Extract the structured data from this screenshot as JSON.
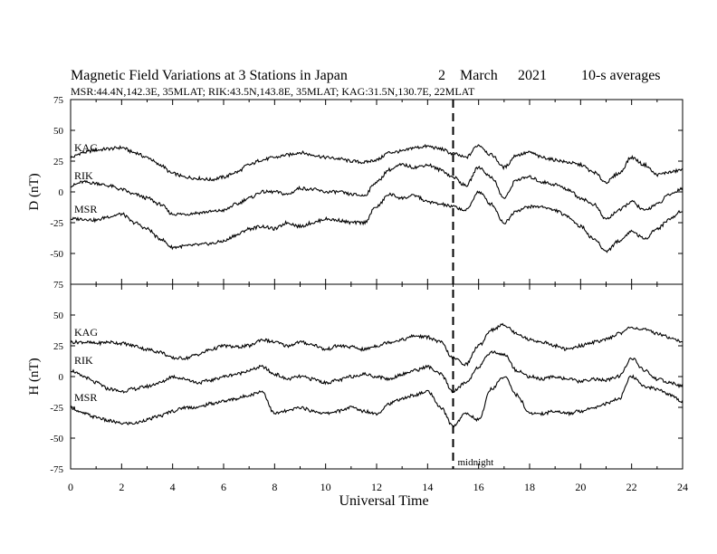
{
  "chart_data": {
    "type": "line",
    "title": "Magnetic Field Variations at 3 Stations in Japan",
    "date": {
      "day": "2",
      "month": "March",
      "year": "2021"
    },
    "averaging": "10-s averages",
    "subtitle": "MSR:44.4N,142.3E, 35MLAT;   RIK:43.5N,143.8E, 35MLAT;   KAG:31.5N,130.7E, 22MLAT",
    "xlabel": "Universal Time",
    "xlim": [
      0,
      24
    ],
    "xticks": [
      0,
      2,
      4,
      6,
      8,
      10,
      12,
      14,
      16,
      18,
      20,
      22,
      24
    ],
    "annotation": {
      "label": "midnight",
      "x": 15
    },
    "panels": [
      {
        "ylabel": "D (nT)",
        "ylim": [
          -75,
          75
        ],
        "yticks": [
          75,
          50,
          25,
          0,
          -25,
          -50,
          -75
        ],
        "series": [
          {
            "name": "KAG",
            "x": [
              0,
              0.5,
              1,
              1.5,
              2,
              2.5,
              3,
              3.5,
              4,
              4.5,
              5,
              5.5,
              6,
              6.5,
              7,
              7.5,
              8,
              8.5,
              9,
              9.5,
              10,
              10.5,
              11,
              11.5,
              12,
              12.5,
              13,
              13.5,
              14,
              14.5,
              15,
              15.5,
              16,
              16.5,
              17,
              17.5,
              18,
              18.5,
              19,
              19.5,
              20,
              20.5,
              21,
              21.5,
              22,
              22.5,
              23,
              23.5,
              24
            ],
            "y": [
              28,
              32,
              34,
              35,
              36,
              32,
              28,
              22,
              15,
              12,
              11,
              10,
              12,
              16,
              22,
              26,
              28,
              30,
              32,
              30,
              28,
              27,
              25,
              24,
              26,
              32,
              33,
              36,
              37,
              35,
              31,
              28,
              38,
              30,
              20,
              30,
              32,
              28,
              26,
              24,
              22,
              16,
              8,
              15,
              28,
              22,
              14,
              16,
              18
            ]
          },
          {
            "name": "RIK",
            "x": [
              0,
              0.5,
              1,
              1.5,
              2,
              2.5,
              3,
              3.5,
              4,
              4.5,
              5,
              5.5,
              6,
              6.5,
              7,
              7.5,
              8,
              8.5,
              9,
              9.5,
              10,
              10.5,
              11,
              11.5,
              12,
              12.5,
              13,
              13.5,
              14,
              14.5,
              15,
              15.5,
              16,
              16.5,
              17,
              17.5,
              18,
              18.5,
              19,
              19.5,
              20,
              20.5,
              21,
              21.5,
              22,
              22.5,
              23,
              23.5,
              24
            ],
            "y": [
              5,
              8,
              7,
              5,
              2,
              -2,
              -5,
              -10,
              -18,
              -18,
              -17,
              -16,
              -15,
              -10,
              -5,
              0,
              0,
              -2,
              3,
              2,
              0,
              0,
              -2,
              -3,
              8,
              18,
              22,
              20,
              22,
              18,
              12,
              5,
              20,
              12,
              -5,
              10,
              12,
              8,
              6,
              2,
              -5,
              -10,
              -22,
              -15,
              -8,
              -15,
              -10,
              -2,
              3
            ]
          },
          {
            "name": "MSR",
            "x": [
              0,
              0.5,
              1,
              1.5,
              2,
              2.5,
              3,
              3.5,
              4,
              4.5,
              5,
              5.5,
              6,
              6.5,
              7,
              7.5,
              8,
              8.5,
              9,
              9.5,
              10,
              10.5,
              11,
              11.5,
              12,
              12.5,
              13,
              13.5,
              14,
              14.5,
              15,
              15.5,
              16,
              16.5,
              17,
              17.5,
              18,
              18.5,
              19,
              19.5,
              20,
              20.5,
              21,
              21.5,
              22,
              22.5,
              23,
              23.5,
              24
            ],
            "y": [
              -22,
              -22,
              -23,
              -20,
              -18,
              -25,
              -30,
              -38,
              -45,
              -44,
              -43,
              -42,
              -40,
              -35,
              -30,
              -28,
              -30,
              -25,
              -28,
              -25,
              -22,
              -23,
              -25,
              -25,
              -12,
              -2,
              -5,
              -3,
              -8,
              -10,
              -12,
              -15,
              0,
              -10,
              -25,
              -15,
              -12,
              -12,
              -15,
              -20,
              -28,
              -38,
              -48,
              -40,
              -32,
              -38,
              -30,
              -22,
              -15
            ]
          }
        ]
      },
      {
        "ylabel": "H (nT)",
        "ylim": [
          -75,
          75
        ],
        "yticks": [
          75,
          50,
          25,
          0,
          -25,
          -50,
          -75
        ],
        "series": [
          {
            "name": "KAG",
            "x": [
              0,
              0.5,
              1,
              1.5,
              2,
              2.5,
              3,
              3.5,
              4,
              4.5,
              5,
              5.5,
              6,
              6.5,
              7,
              7.5,
              8,
              8.5,
              9,
              9.5,
              10,
              10.5,
              11,
              11.5,
              12,
              12.5,
              13,
              13.5,
              14,
              14.5,
              15,
              15.5,
              16,
              16.5,
              17,
              17.5,
              18,
              18.5,
              19,
              19.5,
              20,
              20.5,
              21,
              21.5,
              22,
              22.5,
              23,
              23.5,
              24
            ],
            "y": [
              28,
              28,
              27,
              28,
              27,
              25,
              22,
              20,
              15,
              15,
              18,
              22,
              25,
              24,
              25,
              30,
              28,
              25,
              28,
              26,
              22,
              25,
              24,
              22,
              25,
              28,
              30,
              33,
              32,
              28,
              15,
              10,
              25,
              38,
              42,
              35,
              30,
              28,
              25,
              22,
              25,
              28,
              30,
              35,
              40,
              38,
              35,
              32,
              28
            ]
          },
          {
            "name": "RIK",
            "x": [
              0,
              0.5,
              1,
              1.5,
              2,
              2.5,
              3,
              3.5,
              4,
              4.5,
              5,
              5.5,
              6,
              6.5,
              7,
              7.5,
              8,
              8.5,
              9,
              9.5,
              10,
              10.5,
              11,
              11.5,
              12,
              12.5,
              13,
              13.5,
              14,
              14.5,
              15,
              15.5,
              16,
              16.5,
              17,
              17.5,
              18,
              18.5,
              19,
              19.5,
              20,
              20.5,
              21,
              21.5,
              22,
              22.5,
              23,
              23.5,
              24
            ],
            "y": [
              5,
              0,
              -5,
              -10,
              -12,
              -10,
              -8,
              -5,
              0,
              -2,
              -5,
              -3,
              0,
              2,
              5,
              8,
              2,
              -2,
              0,
              -2,
              -5,
              -3,
              0,
              2,
              0,
              -2,
              2,
              5,
              8,
              2,
              -12,
              -5,
              8,
              20,
              18,
              5,
              0,
              -2,
              0,
              -2,
              -4,
              -2,
              -3,
              0,
              15,
              5,
              -2,
              -5,
              -8
            ]
          },
          {
            "name": "MSR",
            "x": [
              0,
              0.5,
              1,
              1.5,
              2,
              2.5,
              3,
              3.5,
              4,
              4.5,
              5,
              5.5,
              6,
              6.5,
              7,
              7.5,
              8,
              8.5,
              9,
              9.5,
              10,
              10.5,
              11,
              11.5,
              12,
              12.5,
              13,
              13.5,
              14,
              14.5,
              15,
              15.5,
              16,
              16.5,
              17,
              17.5,
              18,
              18.5,
              19,
              19.5,
              20,
              20.5,
              21,
              21.5,
              22,
              22.5,
              23,
              23.5,
              24
            ],
            "y": [
              -25,
              -30,
              -33,
              -36,
              -38,
              -38,
              -35,
              -32,
              -28,
              -25,
              -25,
              -22,
              -20,
              -18,
              -15,
              -12,
              -30,
              -28,
              -25,
              -28,
              -30,
              -28,
              -25,
              -28,
              -30,
              -22,
              -18,
              -15,
              -12,
              -25,
              -40,
              -30,
              -35,
              -10,
              0,
              -15,
              -30,
              -30,
              -28,
              -30,
              -28,
              -25,
              -22,
              -18,
              0,
              -8,
              -10,
              -15,
              -20
            ]
          }
        ]
      }
    ],
    "grid": false,
    "legend": "inline labels at left"
  }
}
